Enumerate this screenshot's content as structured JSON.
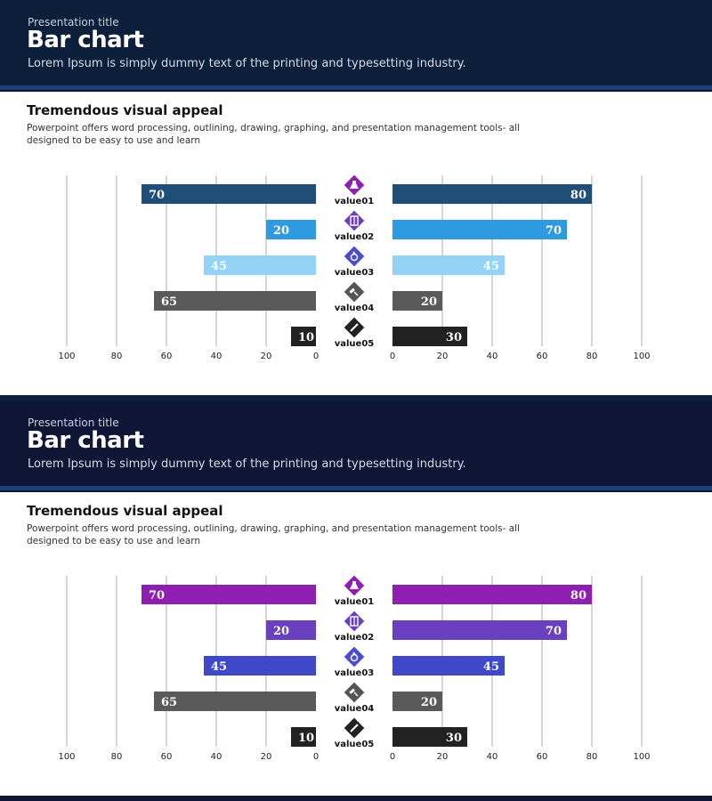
{
  "slides": [
    {
      "header": {
        "presentation_title": "Presentation  title",
        "title": "Bar chart",
        "subtitle": "Lorem Ipsum is simply dummy text of the printing and typesetting industry."
      },
      "section": {
        "title": "Tremendous visual appeal",
        "description": "Powerpoint offers word processing, outlining, drawing, graphing, and presentation management tools- all designed to be easy to use and learn"
      }
    },
    {
      "header": {
        "presentation_title": "Presentation  title",
        "title": "Bar chart",
        "subtitle": "Lorem Ipsum is simply dummy text of the printing and typesetting industry."
      },
      "section": {
        "title": "Tremendous visual appeal",
        "description": "Powerpoint offers word processing, outlining, drawing, graphing, and presentation management tools- all designed to be easy to use and learn"
      }
    }
  ],
  "chart_data": [
    {
      "type": "bar",
      "orientation": "horizontal-butterfly",
      "categories": [
        "value01",
        "value02",
        "value03",
        "value04",
        "value05"
      ],
      "series": [
        {
          "name": "left",
          "values": [
            70,
            20,
            45,
            65,
            10
          ],
          "colors": [
            "#1f4e79",
            "#2e9ae0",
            "#94d3f7",
            "#5a5a5a",
            "#222222"
          ]
        },
        {
          "name": "right",
          "values": [
            80,
            70,
            45,
            20,
            30
          ],
          "colors": [
            "#1f4e79",
            "#2e9ae0",
            "#94d3f7",
            "#5a5a5a",
            "#222222"
          ]
        }
      ],
      "icon_colors": [
        "#8e1fb0",
        "#6a3fc0",
        "#4b4bd0",
        "#555555",
        "#222222"
      ],
      "icons": [
        "flask-icon",
        "book-icon",
        "microscope-icon",
        "gavel-icon",
        "pen-icon"
      ],
      "xlim": [
        0,
        100
      ],
      "ticks": [
        0,
        20,
        40,
        60,
        80,
        100
      ],
      "grid": true
    },
    {
      "type": "bar",
      "orientation": "horizontal-butterfly",
      "categories": [
        "value01",
        "value02",
        "value03",
        "value04",
        "value05"
      ],
      "series": [
        {
          "name": "left",
          "values": [
            70,
            20,
            45,
            65,
            10
          ],
          "colors": [
            "#8e1fb0",
            "#6a3fc0",
            "#3f48c8",
            "#5a5a5a",
            "#222222"
          ]
        },
        {
          "name": "right",
          "values": [
            80,
            70,
            45,
            20,
            30
          ],
          "colors": [
            "#8e1fb0",
            "#6a3fc0",
            "#3f48c8",
            "#5a5a5a",
            "#222222"
          ]
        }
      ],
      "icon_colors": [
        "#8e1fb0",
        "#6a3fc0",
        "#4b4bd0",
        "#555555",
        "#222222"
      ],
      "icons": [
        "flask-icon",
        "book-icon",
        "microscope-icon",
        "gavel-icon",
        "pen-icon"
      ],
      "xlim": [
        0,
        100
      ],
      "ticks": [
        0,
        20,
        40,
        60,
        80,
        100
      ],
      "grid": true
    }
  ]
}
